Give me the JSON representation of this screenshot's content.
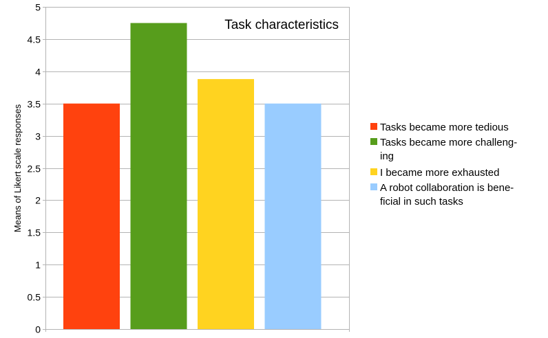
{
  "chart_data": {
    "type": "bar",
    "title": "Task characteristics",
    "xlabel": "",
    "ylabel": "Means of Likert scale responses",
    "ylim": [
      0,
      5
    ],
    "yticks": [
      "0",
      "0.5",
      "1",
      "1.5",
      "2",
      "2.5",
      "3",
      "3.5",
      "4",
      "4.5",
      "5"
    ],
    "grid": true,
    "legend_position": "right",
    "series": [
      {
        "name": "Tasks became more tedious",
        "legend_lines": [
          "Tasks became more tedious"
        ],
        "value": 3.5,
        "color": "#ff420e"
      },
      {
        "name": "Tasks became more challenging",
        "legend_lines": [
          "Tasks became more challeng-",
          "ing"
        ],
        "value": 4.75,
        "color": "#579d1c"
      },
      {
        "name": "I became more exhausted",
        "legend_lines": [
          "I became more exhausted"
        ],
        "value": 3.88,
        "color": "#ffd320"
      },
      {
        "name": "A robot collaboration is beneficial in such tasks",
        "legend_lines": [
          "A robot collaboration is bene-",
          "ficial in such tasks"
        ],
        "value": 3.5,
        "color": "#99ccff"
      }
    ]
  }
}
